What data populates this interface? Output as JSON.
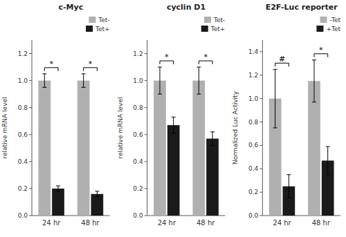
{
  "chart_data": [
    {
      "type": "bar",
      "title": "c-Myc",
      "ylabel": "relative mRNA level",
      "categories": [
        "24 hr",
        "48 hr"
      ],
      "series": [
        {
          "name": "Tet-",
          "color": "#b0b0b0",
          "values": [
            1.0,
            1.0
          ],
          "errors": [
            0.05,
            0.05
          ]
        },
        {
          "name": "Tet+",
          "color": "#1a1a1a",
          "values": [
            0.2,
            0.16
          ],
          "errors": [
            0.02,
            0.02
          ]
        }
      ],
      "ylim": [
        0,
        1.3
      ],
      "yticks": [
        {
          "value": 0,
          "label": "0.0"
        },
        0.2,
        0.4,
        0.6,
        0.8,
        {
          "value": 1.0,
          "label": "1.0"
        },
        1.2
      ],
      "legend": "upper right",
      "annotations": [
        {
          "category": "24 hr",
          "text": "*"
        },
        {
          "category": "48 hr",
          "text": "*"
        }
      ]
    },
    {
      "type": "bar",
      "title": "cyclin D1",
      "ylabel": "relative mRNA level",
      "categories": [
        "24 hr",
        "48 hr"
      ],
      "series": [
        {
          "name": "Tet-",
          "color": "#b0b0b0",
          "values": [
            1.0,
            1.0
          ],
          "errors": [
            0.1,
            0.1
          ]
        },
        {
          "name": "Tet+",
          "color": "#1a1a1a",
          "values": [
            0.67,
            0.57
          ],
          "errors": [
            0.06,
            0.05
          ]
        }
      ],
      "ylim": [
        0,
        1.3
      ],
      "yticks": [
        {
          "value": 0,
          "label": "0.0"
        },
        0.2,
        0.4,
        0.6,
        0.8,
        {
          "value": 1.0,
          "label": "1.0"
        },
        1.2
      ],
      "legend": "upper right",
      "annotations": [
        {
          "category": "24 hr",
          "text": "*"
        },
        {
          "category": "48 hr",
          "text": "*"
        }
      ]
    },
    {
      "type": "bar",
      "title": "E2F-Luc reporter",
      "ylabel": "Normalized Luc Activity",
      "categories": [
        "24 hr",
        "48 hr"
      ],
      "series": [
        {
          "name": "-Tet",
          "color": "#b0b0b0",
          "values": [
            1.0,
            1.15
          ],
          "errors": [
            0.25,
            0.18
          ]
        },
        {
          "name": "+Tet",
          "color": "#1a1a1a",
          "values": [
            0.25,
            0.47
          ],
          "errors": [
            0.1,
            0.12
          ]
        }
      ],
      "ylim": [
        0,
        1.5
      ],
      "yticks": [
        {
          "value": 0,
          "label": "0.0"
        },
        0.2,
        0.4,
        0.6,
        0.8,
        {
          "value": 1.0,
          "label": "1.0"
        },
        1.2,
        1.4
      ],
      "legend": "upper right",
      "annotations": [
        {
          "category": "24 hr",
          "text": "#"
        },
        {
          "category": "48 hr",
          "text": "*"
        }
      ]
    }
  ]
}
